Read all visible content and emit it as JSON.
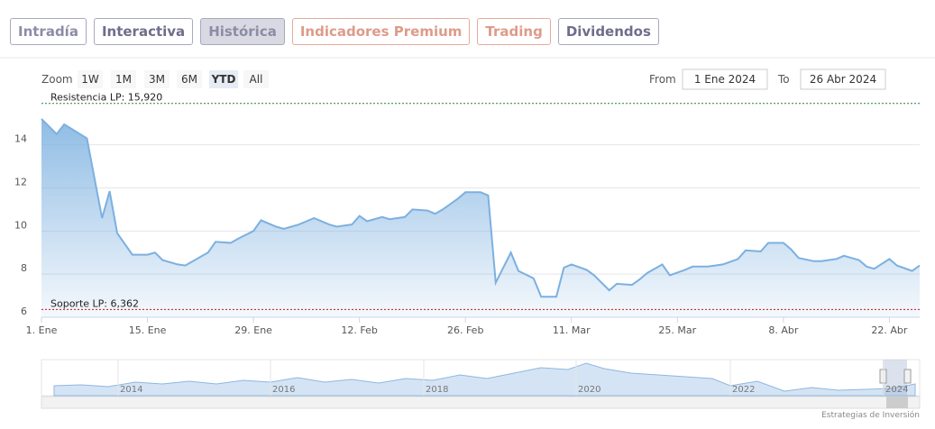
{
  "tabs": [
    "Intradía",
    "Interactiva",
    "Histórica",
    "Indicadores Premium",
    "Trading",
    "Dividendos"
  ],
  "zoom": {
    "label": "Zoom",
    "buttons": [
      "1W",
      "1M",
      "3M",
      "6M",
      "YTD",
      "All"
    ]
  },
  "range": {
    "from_label": "From",
    "from": "1 Ene 2024",
    "to_label": "To",
    "to": "26 Abr 2024"
  },
  "navigator": {
    "labels": [
      "2014",
      "2016",
      "2018",
      "2020",
      "2022",
      "2024"
    ]
  },
  "credit": "Estrategias de Inversión",
  "chart_data": {
    "type": "area",
    "color": "#7cb0e0",
    "grid": true,
    "x": [
      "2024-01-01",
      "2024-01-03",
      "2024-01-04",
      "2024-01-07",
      "2024-01-09",
      "2024-01-10",
      "2024-01-11",
      "2024-01-13",
      "2024-01-15",
      "2024-01-16",
      "2024-01-17",
      "2024-01-19",
      "2024-01-20",
      "2024-01-22",
      "2024-01-23",
      "2024-01-24",
      "2024-01-26",
      "2024-01-27",
      "2024-01-29",
      "2024-01-30",
      "2024-02-01",
      "2024-02-02",
      "2024-02-04",
      "2024-02-05",
      "2024-02-06",
      "2024-02-08",
      "2024-02-09",
      "2024-02-11",
      "2024-02-12",
      "2024-02-13",
      "2024-02-15",
      "2024-02-16",
      "2024-02-18",
      "2024-02-19",
      "2024-02-21",
      "2024-02-22",
      "2024-02-23",
      "2024-02-25",
      "2024-02-26",
      "2024-02-28",
      "2024-02-29",
      "2024-03-01",
      "2024-03-03",
      "2024-03-04",
      "2024-03-06",
      "2024-03-07",
      "2024-03-09",
      "2024-03-10",
      "2024-03-11",
      "2024-03-13",
      "2024-03-14",
      "2024-03-16",
      "2024-03-17",
      "2024-03-19",
      "2024-03-20",
      "2024-03-21",
      "2024-03-23",
      "2024-03-24",
      "2024-03-26",
      "2024-03-27",
      "2024-03-29",
      "2024-03-30",
      "2024-03-31",
      "2024-04-02",
      "2024-04-03",
      "2024-04-05",
      "2024-04-06",
      "2024-04-08",
      "2024-04-09",
      "2024-04-10",
      "2024-04-12",
      "2024-04-13",
      "2024-04-15",
      "2024-04-16",
      "2024-04-18",
      "2024-04-19",
      "2024-04-20",
      "2024-04-22",
      "2024-04-23",
      "2024-04-25",
      "2024-04-26"
    ],
    "values": [
      15.2,
      14.5,
      14.95,
      14.3,
      10.6,
      11.85,
      9.9,
      8.9,
      8.9,
      9.0,
      8.65,
      8.45,
      8.4,
      8.8,
      9.0,
      9.5,
      9.45,
      9.65,
      10.0,
      10.5,
      10.2,
      10.1,
      10.3,
      10.45,
      10.6,
      10.3,
      10.2,
      10.3,
      10.7,
      10.45,
      10.65,
      10.55,
      10.65,
      11.0,
      10.95,
      10.8,
      11.0,
      11.5,
      11.8,
      11.8,
      11.65,
      7.6,
      9.0,
      8.15,
      7.8,
      6.95,
      6.95,
      8.3,
      8.45,
      8.2,
      7.95,
      7.25,
      7.55,
      7.5,
      7.75,
      8.05,
      8.45,
      7.95,
      8.2,
      8.35,
      8.35,
      8.4,
      8.45,
      8.7,
      9.1,
      9.05,
      9.45,
      9.45,
      9.15,
      8.75,
      8.6,
      8.6,
      8.7,
      8.85,
      8.65,
      8.35,
      8.25,
      8.7,
      8.4,
      8.15,
      8.4
    ],
    "xlim": [
      "2024-01-01",
      "2024-04-26"
    ],
    "xticks": [
      {
        "value": "2024-01-01",
        "label": "1. Ene"
      },
      {
        "value": "2024-01-15",
        "label": "15. Ene"
      },
      {
        "value": "2024-01-29",
        "label": "29. Ene"
      },
      {
        "value": "2024-02-12",
        "label": "12. Feb"
      },
      {
        "value": "2024-02-26",
        "label": "26. Feb"
      },
      {
        "value": "2024-03-11",
        "label": "11. Mar"
      },
      {
        "value": "2024-03-25",
        "label": "25. Mar"
      },
      {
        "value": "2024-04-08",
        "label": "8. Abr"
      },
      {
        "value": "2024-04-22",
        "label": "22. Abr"
      }
    ],
    "ylim": [
      6,
      16.2
    ],
    "yticks": [
      6,
      8,
      10,
      12,
      14
    ],
    "annotations": [
      {
        "label": "Resistencia LP: 15,920",
        "value": 15.92,
        "color": "#2e7d32"
      },
      {
        "label": "Soporte LP: 6,362",
        "value": 6.362,
        "color": "#b71c1c"
      }
    ]
  }
}
